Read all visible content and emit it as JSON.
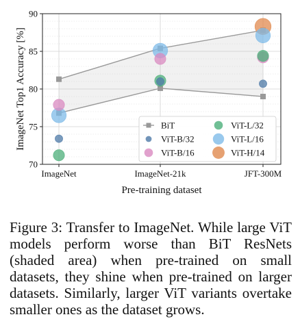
{
  "chart_data": {
    "type": "scatter",
    "xlabel": "Pre-training dataset",
    "ylabel": "ImageNet Top1 Accuracy [%]",
    "categories": [
      "ImageNet",
      "ImageNet-21k",
      "JFT-300M"
    ],
    "ylim": [
      70,
      90
    ],
    "yticks": [
      70,
      75,
      80,
      85,
      90
    ],
    "grid": true,
    "shaded_band": {
      "name": "BiT",
      "upper": [
        81.3,
        85.4,
        87.8
      ],
      "lower": [
        76.8,
        80.1,
        79.0
      ]
    },
    "series": [
      {
        "name": "BiT",
        "color": "#999999",
        "marker": "square",
        "values": [
          81.3,
          85.4,
          87.8
        ]
      },
      {
        "name": "BiT",
        "color": "#999999",
        "marker": "square",
        "values": [
          76.8,
          80.1,
          79.0
        ]
      },
      {
        "name": "ViT-B/32",
        "color": "#4e79a7",
        "size": 1,
        "values": [
          73.4,
          81.0,
          80.7
        ]
      },
      {
        "name": "ViT-B/16",
        "color": "#d98ac0",
        "size": 2,
        "values": [
          77.9,
          84.0,
          84.2
        ]
      },
      {
        "name": "ViT-L/32",
        "color": "#4caf7a",
        "size": 2,
        "values": [
          71.2,
          81.1,
          84.4
        ]
      },
      {
        "name": "ViT-L/16",
        "color": "#7fbbe8",
        "size": 3,
        "values": [
          76.5,
          85.1,
          87.1
        ]
      },
      {
        "name": "ViT-H/14",
        "color": "#e0894f",
        "size": 3.4,
        "values": [
          null,
          null,
          88.3
        ]
      }
    ],
    "legend": {
      "placement": "lower-right",
      "entries": [
        "BiT",
        "ViT-L/32",
        "ViT-B/32",
        "ViT-L/16",
        "ViT-B/16",
        "ViT-H/14"
      ]
    }
  },
  "caption": "Figure 3:  Transfer to ImageNet.  While large ViT models perform worse than BiT ResNets (shaded area) when pre-trained on small datasets, they shine when pre-trained on larger datasets.  Similarly, larger ViT variants overtake smaller ones as the dataset grows."
}
